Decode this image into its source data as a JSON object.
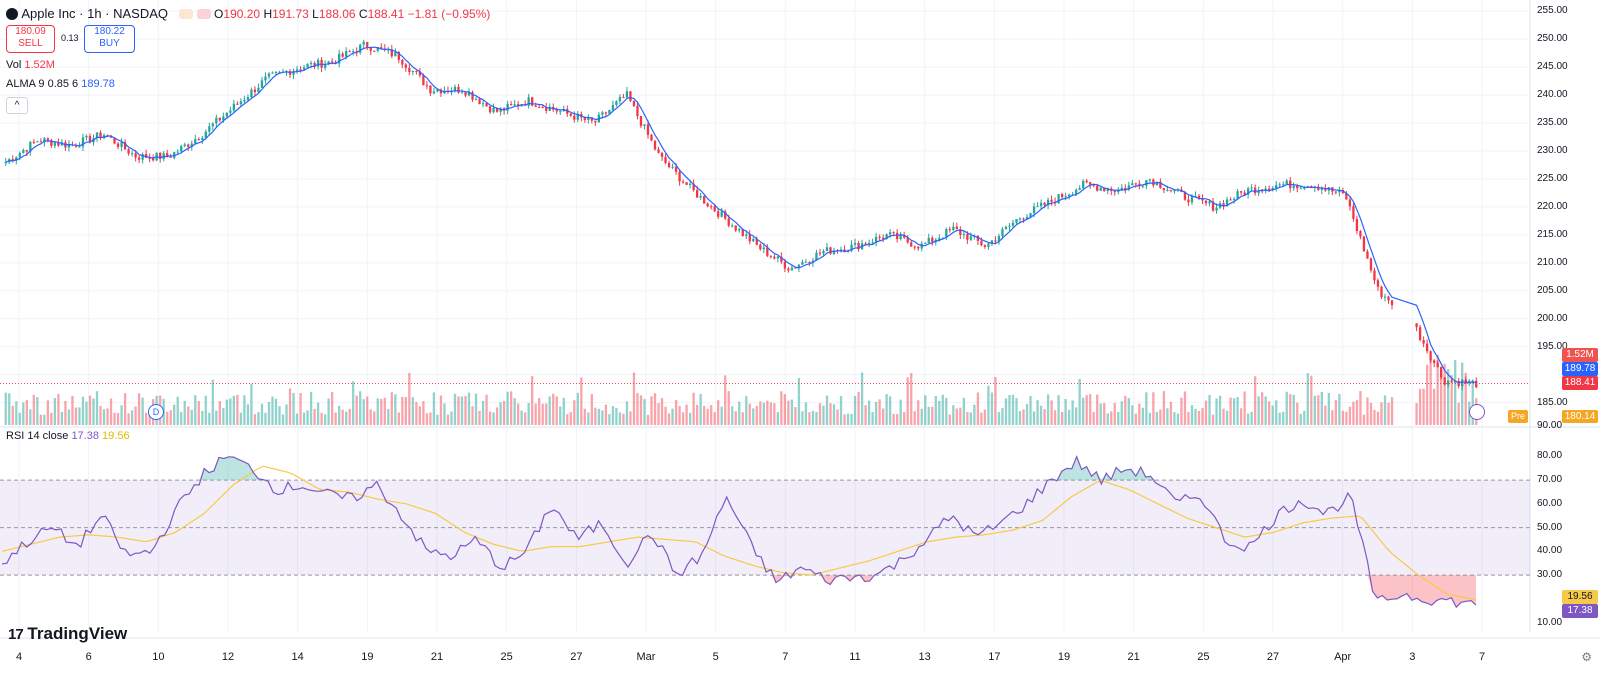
{
  "header": {
    "symbol": "Apple Inc · 1h · NASDAQ",
    "o_label": "O",
    "o_value": "190.20",
    "h_label": "H",
    "h_value": "191.73",
    "l_label": "L",
    "l_value": "188.06",
    "c_label": "C",
    "c_value": "188.41",
    "change": "−1.81 (−0.95%)",
    "sell_price": "180.09",
    "sell_label": "SELL",
    "spread": "0.13",
    "buy_price": "180.22",
    "buy_label": "BUY",
    "vol_label": "Vol",
    "vol_value": "1.52M",
    "alma_label": "ALMA 9 0.85 6",
    "alma_value": "189.78",
    "collapse_glyph": "^"
  },
  "price_axis": {
    "ticks": [
      "255.00",
      "250.00",
      "245.00",
      "240.00",
      "235.00",
      "230.00",
      "225.00",
      "220.00",
      "215.00",
      "210.00",
      "205.00",
      "200.00",
      "195.00",
      "185.00"
    ],
    "tag_volume": "1.52M",
    "tag_alma": "189.78",
    "tag_close": "188.41",
    "pre_label": "Pre",
    "pre_value": "180.14",
    "top_value": "90.00"
  },
  "rsi": {
    "label": "RSI 14 close",
    "rsi_value": "17.38",
    "ma_value": "19.56",
    "ticks": [
      "80.00",
      "70.00",
      "60.00",
      "50.00",
      "40.00",
      "30.00",
      "10.00"
    ],
    "tag_ma": "19.56",
    "tag_rsi": "17.38"
  },
  "x_axis": {
    "labels": [
      "4",
      "6",
      "10",
      "12",
      "14",
      "19",
      "21",
      "25",
      "27",
      "Mar",
      "5",
      "7",
      "11",
      "13",
      "17",
      "19",
      "21",
      "25",
      "27",
      "Apr",
      "3",
      "7"
    ]
  },
  "brand": {
    "logo_text": "TradingView"
  },
  "badges": {
    "dividend": "D"
  },
  "colors": {
    "up": "#26a69a",
    "down": "#f23645",
    "alma": "#2962ff",
    "rsi": "#7e57c2",
    "rsi_ma": "#f7c948"
  },
  "chart_data": {
    "type": "candlestick",
    "title": "Apple Inc · 1h · NASDAQ",
    "ylim": [
      181,
      257
    ],
    "x": [
      "4",
      "6",
      "10",
      "12",
      "14",
      "19",
      "21",
      "25",
      "27",
      "Mar",
      "5",
      "7",
      "11",
      "13",
      "17",
      "19",
      "21",
      "25",
      "27",
      "Apr",
      "3",
      "7"
    ],
    "close_path": [
      228,
      232,
      231,
      233,
      229,
      229,
      233,
      238,
      243,
      245,
      246,
      249,
      247,
      241,
      241,
      237,
      239,
      237,
      235,
      240,
      229,
      223,
      218,
      213,
      209,
      212,
      213,
      215,
      213,
      216,
      213,
      218,
      221,
      224,
      223,
      225,
      222,
      220,
      223,
      224,
      224,
      222,
      205,
      200,
      189,
      188.41
    ],
    "volume_last": "1.52M",
    "alma_last": 189.78,
    "rsi": {
      "period": 14,
      "overbought": 70,
      "oversold": 30,
      "ylim": [
        6,
        92
      ],
      "rsi_path": [
        35,
        44,
        50,
        42,
        55,
        38,
        40,
        58,
        72,
        80,
        75,
        66,
        68,
        64,
        62,
        68,
        55,
        40,
        38,
        45,
        33,
        40,
        60,
        45,
        52,
        35,
        48,
        30,
        38,
        63,
        42,
        27,
        33,
        28,
        29,
        30,
        36,
        45,
        55,
        46,
        52,
        60,
        70,
        78,
        70,
        75,
        72,
        60,
        64,
        44,
        42,
        55,
        62,
        56,
        63,
        18,
        22,
        20,
        19,
        17.38
      ],
      "ma_path": [
        40,
        43,
        46,
        47,
        46,
        44,
        48,
        56,
        68,
        76,
        73,
        66,
        65,
        62,
        60,
        56,
        48,
        43,
        40,
        42,
        42,
        44,
        46,
        45,
        44,
        38,
        34,
        31,
        30,
        33,
        36,
        40,
        44,
        46,
        47,
        49,
        53,
        63,
        70,
        66,
        60,
        54,
        50,
        46,
        48,
        52,
        54,
        55,
        40,
        30,
        22,
        19.56
      ],
      "rsi_last": 17.38,
      "ma_last": 19.56
    }
  }
}
